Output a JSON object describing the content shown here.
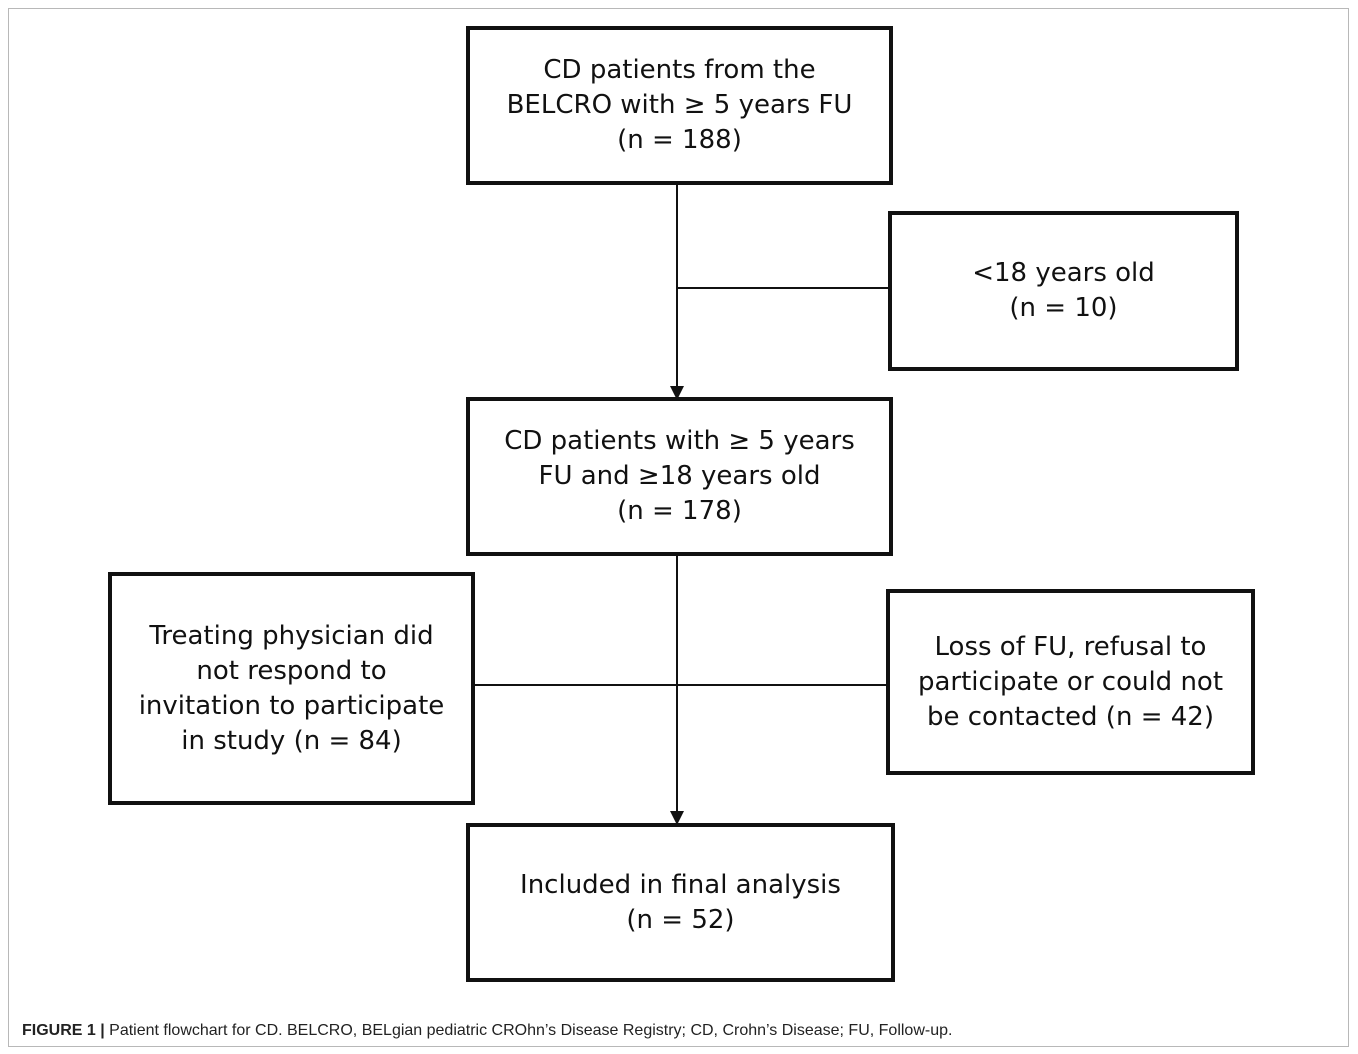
{
  "boxes": {
    "source": {
      "lines": [
        "CD patients from the",
        "BELCRO with ≥ 5 years FU",
        "(n = 188)"
      ]
    },
    "excluded_age": {
      "lines": [
        "<18 years old",
        "(n = 10)"
      ]
    },
    "eligible": {
      "lines": [
        "CD patients with ≥ 5 years",
        "FU and ≥18 years old",
        "(n = 178)"
      ]
    },
    "no_response": {
      "lines": [
        "Treating physician did",
        "not respond to",
        "invitation to participate",
        "in study (n = 84)"
      ]
    },
    "lost_fu": {
      "lines": [
        "Loss of FU, refusal to",
        "participate or could not",
        "be contacted (n = 42)"
      ]
    },
    "final": {
      "lines": [
        "Included in final analysis",
        "(n = 52)"
      ]
    }
  },
  "caption": {
    "label": "FIGURE 1 |",
    "text": " Patient flowchart for CD. BELCRO, BELgian pediatric CROhn’s Disease Registry; CD, Crohn’s Disease; FU, Follow-up."
  }
}
